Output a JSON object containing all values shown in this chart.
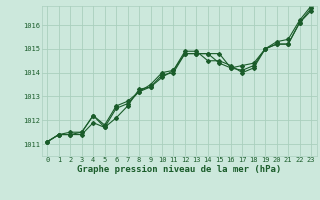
{
  "title": "Graphe pression niveau de la mer (hPa)",
  "background_color": "#cce8dc",
  "grid_color": "#aacfbe",
  "line_color": "#1a5c2a",
  "text_color": "#1a5c2a",
  "xlim": [
    -0.5,
    23.5
  ],
  "ylim": [
    1010.5,
    1016.8
  ],
  "yticks": [
    1011,
    1012,
    1013,
    1014,
    1015,
    1016
  ],
  "xticks": [
    0,
    1,
    2,
    3,
    4,
    5,
    6,
    7,
    8,
    9,
    10,
    11,
    12,
    13,
    14,
    15,
    16,
    17,
    18,
    19,
    20,
    21,
    22,
    23
  ],
  "series": [
    [
      1011.1,
      1011.4,
      1011.4,
      1011.4,
      1011.9,
      1011.7,
      1012.1,
      1012.6,
      1013.3,
      1013.4,
      1013.8,
      1014.1,
      1014.8,
      1014.8,
      1014.8,
      1014.8,
      1014.2,
      1014.1,
      1014.3,
      1015.0,
      1015.2,
      1015.2,
      1016.1,
      1016.6
    ],
    [
      1011.1,
      1011.4,
      1011.4,
      1011.5,
      1012.2,
      1011.7,
      1012.5,
      1012.7,
      1013.2,
      1013.4,
      1013.9,
      1014.0,
      1014.8,
      1014.8,
      1014.8,
      1014.4,
      1014.2,
      1014.3,
      1014.4,
      1015.0,
      1015.2,
      1015.2,
      1016.1,
      1016.7
    ],
    [
      1011.1,
      1011.4,
      1011.5,
      1011.5,
      1012.2,
      1011.8,
      1012.6,
      1012.8,
      1013.2,
      1013.5,
      1014.0,
      1014.1,
      1014.9,
      1014.9,
      1014.5,
      1014.5,
      1014.3,
      1014.0,
      1014.2,
      1015.0,
      1015.3,
      1015.4,
      1016.2,
      1016.8
    ]
  ],
  "marker": "D",
  "marker_size": 2.0,
  "linewidth": 0.8,
  "xlabel_fontsize": 6.5,
  "tick_fontsize": 5.0
}
